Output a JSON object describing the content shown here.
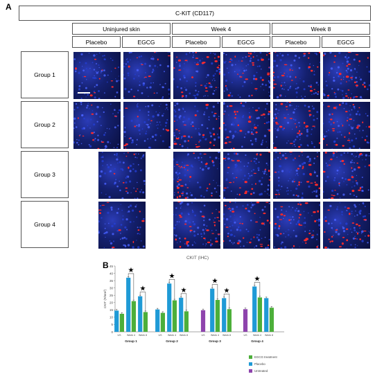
{
  "panel_a": {
    "label": "A",
    "marker_title": "C-KIT (CD117)",
    "timepoints": [
      "Uninjured skin",
      "Week 4",
      "Week 8"
    ],
    "treatments": [
      "Placebo",
      "EGCG",
      "Placebo",
      "EGCG",
      "Placebo",
      "EGCG"
    ],
    "groups": [
      "Group 1",
      "Group 2",
      "Group 3",
      "Group 4"
    ]
  },
  "panel_b": {
    "label": "B"
  },
  "colors": {
    "egcg": "#4caf3a",
    "placebo": "#1f9ad6",
    "untreated": "#8e44ad",
    "tissue_blue": "#1b2a8c",
    "tissue_red": "#ff2a2a"
  },
  "chart_data": {
    "type": "bar",
    "title": "CKIT (IHC)",
    "ylabel": "CKIT (#/mm²)",
    "ylim": [
      0,
      45
    ],
    "yticks": [
      0,
      5,
      10,
      15,
      20,
      25,
      30,
      35,
      40,
      45
    ],
    "significance_marker": "★",
    "groups": [
      {
        "name": "Group 1",
        "categories": [
          "US",
          "Week 4",
          "Week 8"
        ],
        "bars": [
          {
            "category": "US",
            "series": "Placebo",
            "value": 14.5
          },
          {
            "category": "US",
            "series": "EGCG treatment",
            "value": 12.3
          },
          {
            "category": "Week 4",
            "series": "Placebo",
            "value": 37.0
          },
          {
            "category": "Week 4",
            "series": "EGCG treatment",
            "value": 21.0
          },
          {
            "category": "Week 8",
            "series": "Placebo",
            "value": 24.3
          },
          {
            "category": "Week 8",
            "series": "EGCG treatment",
            "value": 13.5
          }
        ],
        "significance": [
          "Week 4",
          "Week 8"
        ]
      },
      {
        "name": "Group 2",
        "categories": [
          "US",
          "Week 4",
          "Week 8"
        ],
        "bars": [
          {
            "category": "US",
            "series": "Placebo",
            "value": 15.3
          },
          {
            "category": "US",
            "series": "EGCG treatment",
            "value": 13.0
          },
          {
            "category": "Week 4",
            "series": "Placebo",
            "value": 33.0
          },
          {
            "category": "Week 4",
            "series": "EGCG treatment",
            "value": 21.5
          },
          {
            "category": "Week 8",
            "series": "Placebo",
            "value": 23.3
          },
          {
            "category": "Week 8",
            "series": "EGCG treatment",
            "value": 14.0
          }
        ],
        "significance": [
          "Week 4",
          "Week 8"
        ]
      },
      {
        "name": "Group 3",
        "categories": [
          "US",
          "Week 4",
          "Week 8"
        ],
        "bars": [
          {
            "category": "US",
            "series": "Untreated",
            "value": 14.8
          },
          {
            "category": "Week 4",
            "series": "Placebo",
            "value": 29.5
          },
          {
            "category": "Week 4",
            "series": "EGCG treatment",
            "value": 21.8
          },
          {
            "category": "Week 8",
            "series": "Placebo",
            "value": 23.0
          },
          {
            "category": "Week 8",
            "series": "EGCG treatment",
            "value": 15.5
          }
        ],
        "significance": [
          "Week 4",
          "Week 8"
        ]
      },
      {
        "name": "Group 4",
        "categories": [
          "US",
          "Week 4",
          "Week 8"
        ],
        "bars": [
          {
            "category": "US",
            "series": "Untreated",
            "value": 15.5
          },
          {
            "category": "Week 4",
            "series": "Placebo",
            "value": 31.0
          },
          {
            "category": "Week 4",
            "series": "EGCG treatment",
            "value": 23.5
          },
          {
            "category": "Week 8",
            "series": "Placebo",
            "value": 23.0
          },
          {
            "category": "Week 8",
            "series": "EGCG treatment",
            "value": 16.5
          }
        ],
        "significance": [
          "Week 4"
        ]
      }
    ],
    "legend": [
      {
        "name": "EGCG treatment",
        "color": "#4caf3a"
      },
      {
        "name": "Placebo",
        "color": "#1f9ad6"
      },
      {
        "name": "Untreated",
        "color": "#8e44ad"
      }
    ],
    "legend_position": "bottom-right"
  }
}
